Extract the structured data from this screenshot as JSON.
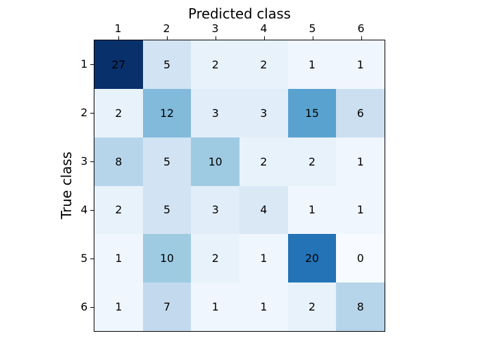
{
  "chart_data": {
    "type": "heatmap",
    "title": "",
    "xlabel": "Predicted class",
    "ylabel": "True class",
    "x_tick_labels": [
      "1",
      "2",
      "3",
      "4",
      "5",
      "6"
    ],
    "y_tick_labels": [
      "1",
      "2",
      "3",
      "4",
      "5",
      "6"
    ],
    "matrix": [
      [
        27,
        5,
        2,
        2,
        1,
        1
      ],
      [
        2,
        12,
        3,
        3,
        15,
        6
      ],
      [
        8,
        5,
        10,
        2,
        2,
        1
      ],
      [
        2,
        5,
        3,
        4,
        1,
        1
      ],
      [
        1,
        10,
        2,
        1,
        20,
        0
      ],
      [
        1,
        7,
        1,
        1,
        2,
        8
      ]
    ],
    "colormap": "Blues",
    "vmin": 0,
    "vmax": 27,
    "colormap_anchors": [
      {
        "pos": 0.0,
        "hex": "#f7fbff"
      },
      {
        "pos": 0.125,
        "hex": "#deebf7"
      },
      {
        "pos": 0.25,
        "hex": "#c6dbef"
      },
      {
        "pos": 0.375,
        "hex": "#9ecae1"
      },
      {
        "pos": 0.5,
        "hex": "#6baed6"
      },
      {
        "pos": 0.625,
        "hex": "#4292c6"
      },
      {
        "pos": 0.75,
        "hex": "#2171b5"
      },
      {
        "pos": 0.875,
        "hex": "#08519c"
      },
      {
        "pos": 1.0,
        "hex": "#08306b"
      }
    ],
    "layout": {
      "grid": "off",
      "legend": "none",
      "x_axis_position": "top",
      "background_color": "#ffffff",
      "spine_color": "#000000",
      "cell_text_color": "#000000"
    }
  }
}
